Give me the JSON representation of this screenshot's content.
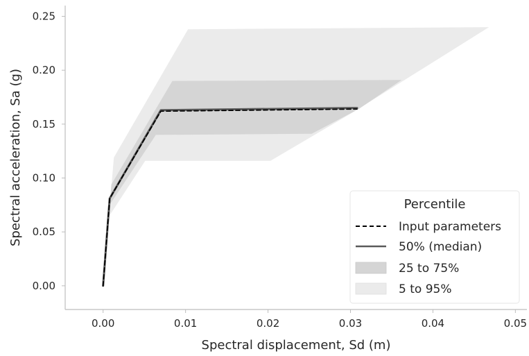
{
  "chart_data": {
    "type": "area",
    "title": "",
    "xlabel": "Spectral displacement, Sd (m)",
    "ylabel": "Spectral acceleration, Sa (g)",
    "xlim": [
      -0.0046,
      0.0514
    ],
    "ylim": [
      -0.022,
      0.26
    ],
    "xticks": [
      0.0,
      0.01,
      0.02,
      0.03,
      0.04,
      0.05
    ],
    "xtick_labels": [
      "0.00",
      "0.01",
      "0.02",
      "0.03",
      "0.04",
      "0.05"
    ],
    "yticks": [
      0.0,
      0.05,
      0.1,
      0.15,
      0.2,
      0.25
    ],
    "ytick_labels": [
      "0.00",
      "0.05",
      "0.10",
      "0.15",
      "0.20",
      "0.25"
    ],
    "grid": false,
    "legend": {
      "title": "Percentile",
      "placement": "lower-right",
      "entries": [
        "Input parameters",
        "50% (median)",
        "25 to 75%",
        "5 to 95%"
      ]
    },
    "series": [
      {
        "name": "Input parameters",
        "kind": "line",
        "style": "dashed",
        "color": "#000000",
        "x": [
          0.0,
          0.0008,
          0.007,
          0.0308
        ],
        "y": [
          0.0,
          0.081,
          0.162,
          0.164
        ]
      },
      {
        "name": "50% (median)",
        "kind": "line",
        "style": "solid",
        "color": "#5a5a5a",
        "x": [
          0.0,
          0.0008,
          0.007,
          0.0308
        ],
        "y": [
          0.0,
          0.081,
          0.163,
          0.165
        ]
      }
    ],
    "bands": [
      {
        "name": "5 to 95%",
        "color": "#ebebeb",
        "upper": {
          "x": [
            0.0,
            0.0013,
            0.0103,
            0.0468
          ],
          "y": [
            0.0,
            0.119,
            0.238,
            0.24
          ]
        },
        "lower": {
          "x": [
            0.0,
            0.0006,
            0.0051,
            0.0203,
            0.0303
          ],
          "y": [
            0.0,
            0.063,
            0.116,
            0.116,
            0.161
          ]
        }
      },
      {
        "name": "25 to 75%",
        "color": "#d5d5d5",
        "upper": {
          "x": [
            0.0,
            0.001,
            0.0084,
            0.0362
          ],
          "y": [
            0.0,
            0.094,
            0.19,
            0.191
          ]
        },
        "lower": {
          "x": [
            0.0,
            0.0007,
            0.0064,
            0.0253,
            0.031
          ],
          "y": [
            0.0,
            0.074,
            0.14,
            0.141,
            0.164
          ]
        }
      }
    ]
  }
}
